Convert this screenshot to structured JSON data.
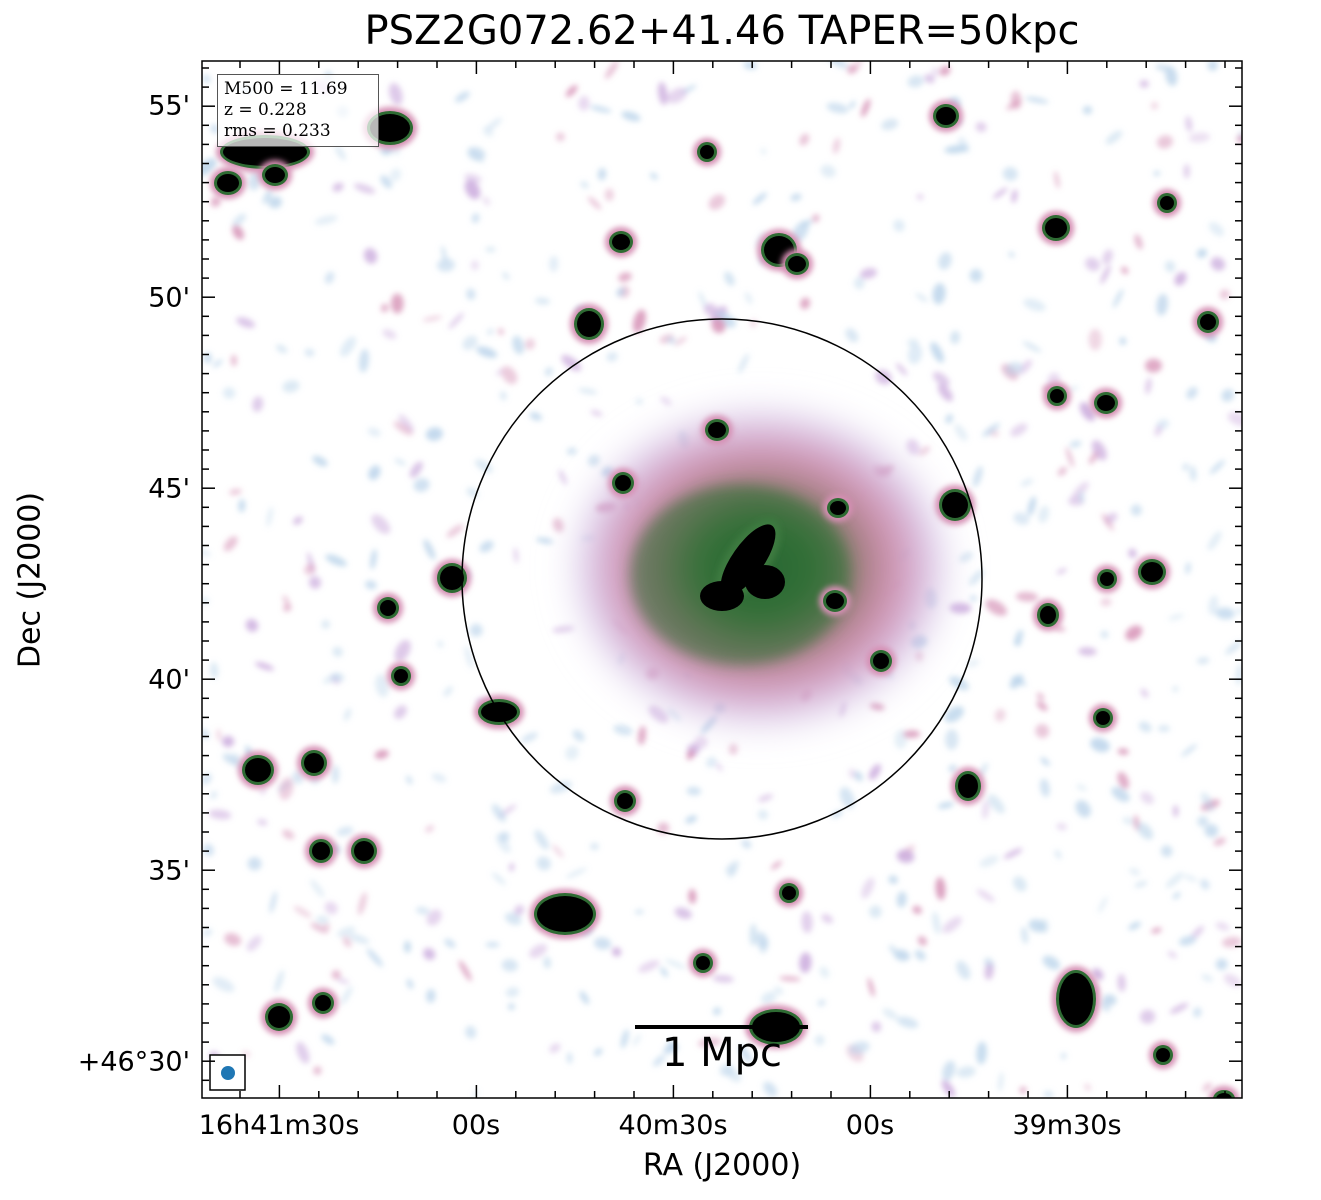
{
  "title": "PSZ2G072.62+41.46 TAPER=50kpc",
  "axes": {
    "xlabel": "RA (J2000)",
    "ylabel": "Dec (J2000)",
    "x_ticks": [
      "16h41m30s",
      "00s",
      "40m30s",
      "00s",
      "39m30s"
    ],
    "y_ticks": [
      "55'",
      "50'",
      "45'",
      "40'",
      "35'",
      "+46°30'"
    ]
  },
  "info_box": {
    "m500": "M500 = 11.69",
    "z": "z = 0.228",
    "rms": "rms = 0.233"
  },
  "scale_bar": {
    "label": "1 Mpc"
  },
  "colors": {
    "emission_faint": "#b9d3ea",
    "emission_low": "#c9a8dc",
    "emission_mid": "#d58fb4",
    "emission_high": "#2e6b33",
    "emission_peak": "#000000",
    "beam": "#1f77b4"
  }
}
